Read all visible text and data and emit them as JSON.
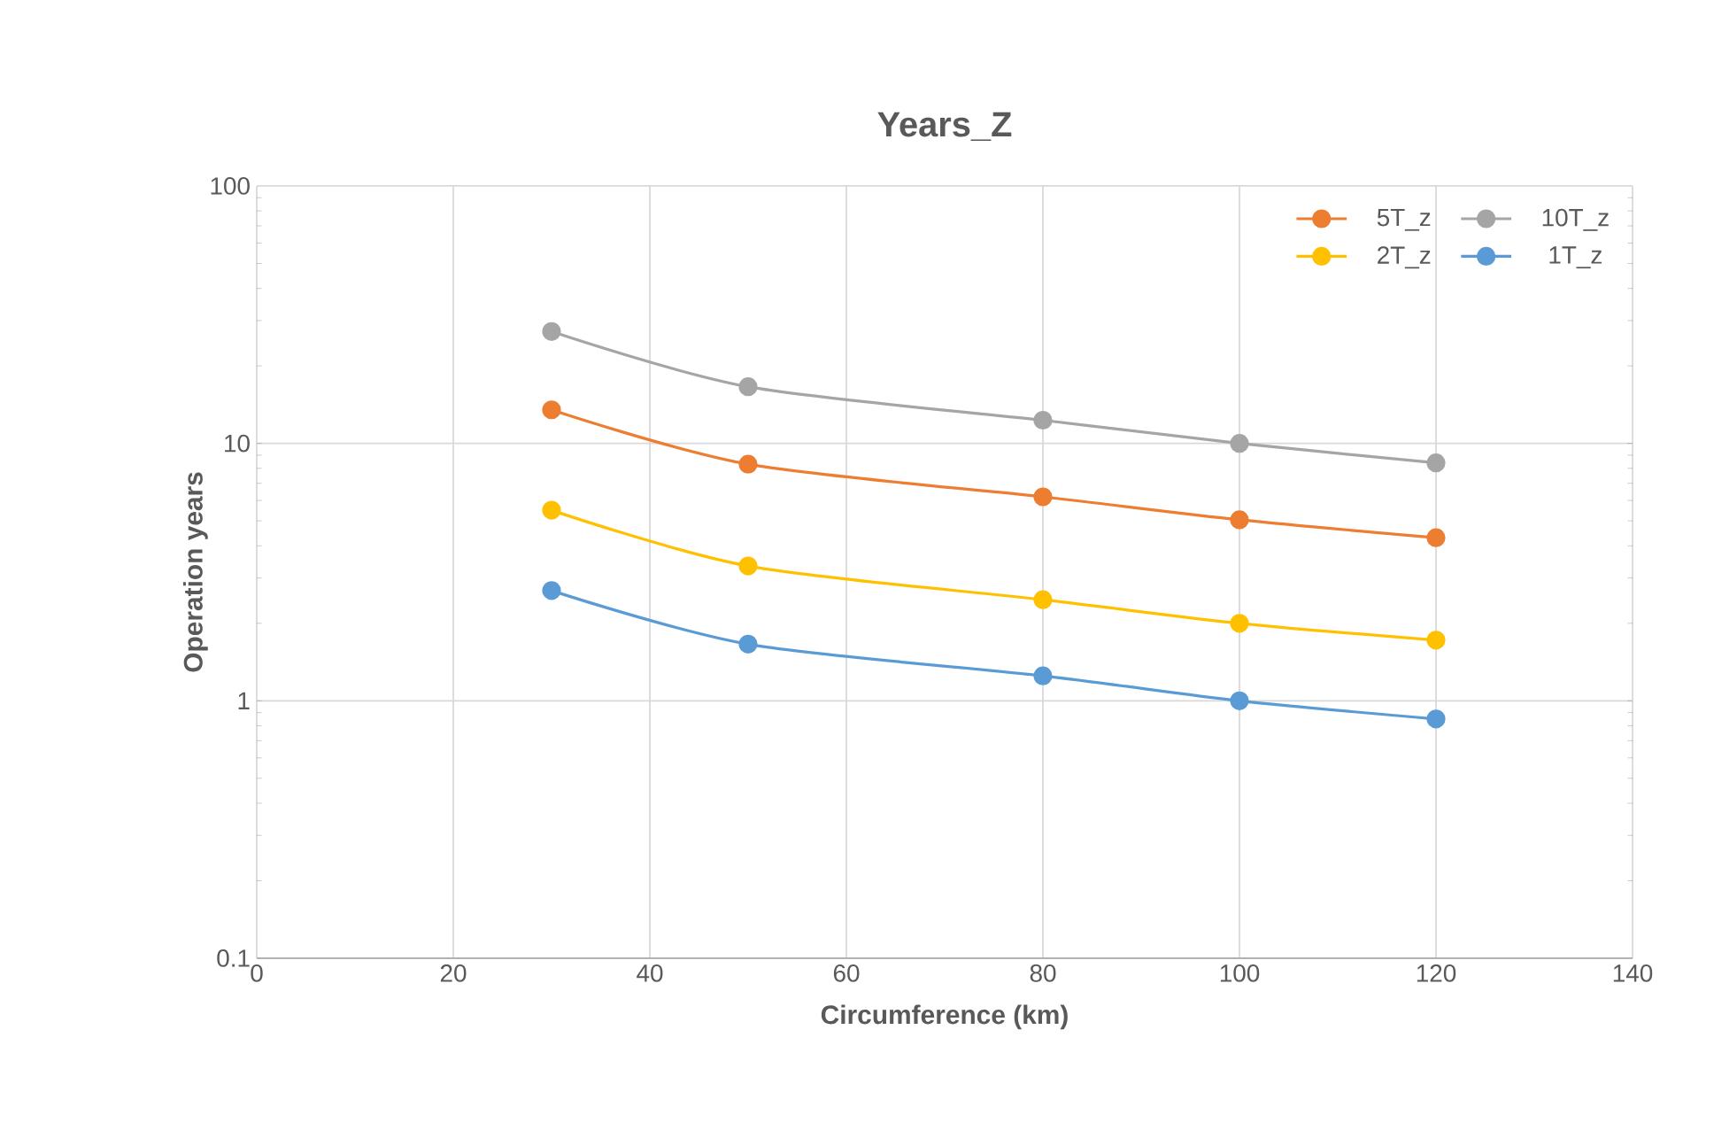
{
  "chart_data": {
    "type": "line",
    "title": "Years_Z",
    "xlabel": "Circumference (km)",
    "ylabel": "Operation years",
    "x": [
      30,
      50,
      80,
      100,
      120
    ],
    "series": [
      {
        "name": "5T_z",
        "color": "#ed7d31",
        "values": [
          13.5,
          8.3,
          6.2,
          5.05,
          4.3
        ]
      },
      {
        "name": "10T_z",
        "color": "#a5a5a5",
        "values": [
          27.2,
          16.6,
          12.3,
          10,
          8.4
        ]
      },
      {
        "name": "2T_z",
        "color": "#ffc000",
        "values": [
          5.5,
          3.34,
          2.47,
          2.0,
          1.72
        ]
      },
      {
        "name": "1T_z",
        "color": "#5b9bd5",
        "values": [
          2.68,
          1.66,
          1.25,
          1.0,
          0.85
        ]
      }
    ],
    "xlim": [
      0,
      140
    ],
    "xticks": [
      0,
      20,
      40,
      60,
      80,
      100,
      120,
      140
    ],
    "ylim": [
      0.1,
      100
    ],
    "yticks": [
      0.1,
      1,
      10,
      100
    ],
    "log": "y",
    "grid": true,
    "legend": "top right",
    "marker": "circle",
    "line_style": "solid"
  }
}
